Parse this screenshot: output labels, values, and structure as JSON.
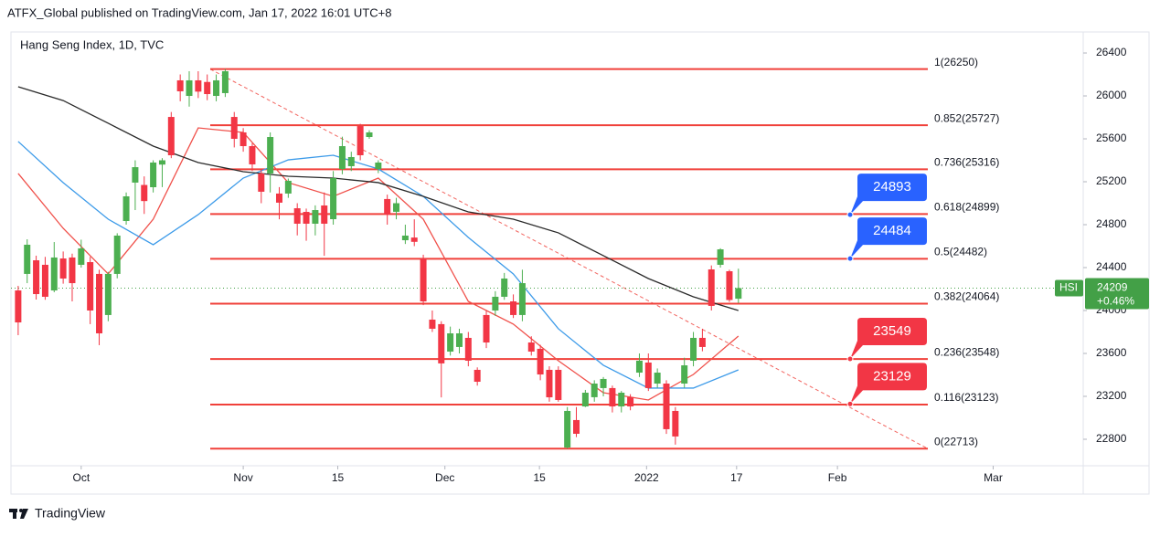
{
  "header": "ATFX_Global published on TradingView.com, Jan 17, 2022 16:01 UTC+8",
  "footer": "TradingView",
  "chart_data": {
    "type": "candlestick",
    "title": "Hang Seng Index, 1D, TVC",
    "x": [
      0,
      1,
      2,
      3,
      4,
      5,
      6,
      7,
      8,
      9,
      10,
      11,
      12,
      13,
      14,
      15,
      16,
      17,
      18,
      19,
      20,
      21,
      22,
      23,
      24,
      25,
      26,
      27,
      28,
      29,
      30,
      31,
      32,
      33,
      34,
      35,
      36,
      37,
      38,
      39,
      40,
      41,
      42,
      43,
      44,
      45,
      46,
      47,
      48,
      49,
      50,
      51,
      52,
      53,
      54,
      55,
      56,
      57,
      58,
      59,
      60,
      61,
      62,
      63,
      64,
      65,
      66,
      67,
      68,
      69,
      70,
      71,
      72,
      73,
      74,
      75,
      76,
      77,
      78,
      79,
      80
    ],
    "open": [
      24187,
      24341,
      24468,
      24426,
      24187,
      24485,
      24494,
      24426,
      24451,
      24341,
      23958,
      24341,
      24834,
      25192,
      25170,
      25149,
      25360,
      25804,
      26145,
      26000,
      26145,
      26130,
      26000,
      26026,
      25804,
      25660,
      25532,
      25277,
      25277,
      25090,
      25090,
      24953,
      24919,
      24809,
      24979,
      24851,
      25319,
      25345,
      25719,
      25617,
      25319,
      25039,
      24920,
      24655,
      24680,
      24485,
      23915,
      23873,
      23617,
      23660,
      23745,
      23447,
      23958,
      24000,
      24128,
      24085,
      23958,
      23702,
      23643,
      23447,
      23447,
      22723,
      22979,
      23106,
      23192,
      23277,
      23277,
      23106,
      23192,
      23421,
      23515,
      23319,
      23319,
      23064,
      23319,
      23532,
      23745,
      24383,
      24426,
      24366,
      24110
    ],
    "high": [
      24230,
      24664,
      24511,
      24500,
      24638,
      24550,
      24530,
      24660,
      24500,
      24380,
      24360,
      24720,
      25100,
      25400,
      25250,
      25400,
      25420,
      25850,
      26200,
      26230,
      26230,
      26200,
      26200,
      26250,
      25850,
      25700,
      25560,
      25320,
      25660,
      25150,
      25230,
      25000,
      24950,
      24980,
      25100,
      25300,
      25620,
      25480,
      25740,
      25680,
      25400,
      25080,
      25050,
      24800,
      24850,
      24520,
      24000,
      23900,
      23850,
      23830,
      23800,
      23470,
      24000,
      24180,
      24350,
      24150,
      24380,
      23760,
      23680,
      23480,
      23480,
      23100,
      23100,
      23260,
      23350,
      23380,
      23300,
      23250,
      23220,
      23600,
      23600,
      23460,
      23350,
      23100,
      23560,
      23800,
      23830,
      24420,
      24580,
      24380,
      24390
    ],
    "low": [
      23770,
      24255,
      24102,
      24100,
      24170,
      24250,
      24085,
      24400,
      23873,
      23677,
      23900,
      24300,
      24800,
      24936,
      24900,
      25100,
      25150,
      25420,
      25950,
      25900,
      25980,
      25960,
      25950,
      25990,
      25520,
      25480,
      25300,
      25000,
      25100,
      24850,
      25050,
      24700,
      24650,
      24700,
      24510,
      24800,
      25270,
      25300,
      25400,
      25600,
      25280,
      24800,
      24850,
      24620,
      24600,
      24050,
      23800,
      23190,
      23580,
      23600,
      23480,
      23300,
      23650,
      23950,
      24100,
      23930,
      23900,
      23580,
      23350,
      23150,
      23150,
      22713,
      22820,
      23100,
      23150,
      23200,
      23050,
      23050,
      23070,
      23380,
      23250,
      23280,
      22850,
      22750,
      23280,
      23480,
      23620,
      24000,
      24400,
      24080,
      24070
    ],
    "close": [
      23889,
      24613,
      24153,
      24128,
      24494,
      24298,
      24255,
      24579,
      24000,
      23787,
      24341,
      24698,
      25064,
      25336,
      25020,
      25379,
      25400,
      25447,
      26043,
      26145,
      26040,
      26017,
      26145,
      26230,
      25600,
      25532,
      25362,
      25107,
      25617,
      25005,
      25209,
      24809,
      24809,
      24936,
      24809,
      25234,
      25532,
      25430,
      25447,
      25660,
      25379,
      24894,
      25000,
      24698,
      24640,
      24085,
      23830,
      23507,
      23787,
      23787,
      23532,
      23336,
      23702,
      24128,
      24298,
      23958,
      24255,
      23617,
      23404,
      23191,
      23166,
      23064,
      22851,
      23234,
      23319,
      23362,
      23106,
      23234,
      23106,
      23532,
      23277,
      23421,
      22894,
      22826,
      23489,
      23745,
      23660,
      24043,
      24570,
      24098,
      24209
    ],
    "up_color": "#4caf50",
    "down_color": "#f23645",
    "moving_averages": [
      {
        "color": "#f0504a",
        "x": [
          0,
          5,
          10,
          15,
          20,
          25,
          30,
          35,
          40,
          45,
          50,
          55,
          60,
          65,
          70,
          75,
          80
        ],
        "values": [
          25277,
          24766,
          24341,
          24851,
          25702,
          25660,
          25192,
          25064,
          25234,
          24851,
          24085,
          23873,
          23532,
          23234,
          23166,
          23404,
          23762
        ]
      },
      {
        "color": "#3d9be9",
        "x": [
          0,
          5,
          10,
          15,
          20,
          25,
          30,
          35,
          40,
          45,
          50,
          55,
          60,
          65,
          70,
          75,
          80
        ],
        "values": [
          25575,
          25192,
          24851,
          24613,
          24894,
          25234,
          25404,
          25447,
          25319,
          25064,
          24681,
          24341,
          23830,
          23490,
          23277,
          23277,
          23447
        ]
      },
      {
        "color": "#2a2a2a",
        "x": [
          0,
          5,
          10,
          15,
          20,
          25,
          30,
          35,
          40,
          45,
          50,
          55,
          60,
          65,
          70,
          75,
          80
        ],
        "values": [
          26085,
          25957,
          25745,
          25532,
          25379,
          25294,
          25251,
          25234,
          25192,
          25064,
          24919,
          24851,
          24724,
          24511,
          24298,
          24128,
          24000
        ]
      }
    ],
    "fib_color": "#f0403a",
    "fib_levels": [
      {
        "value": 26250,
        "label": "1(26250)"
      },
      {
        "value": 25727,
        "label": "0.852(25727)"
      },
      {
        "value": 25316,
        "label": "0.736(25316)"
      },
      {
        "value": 24899,
        "label": "0.618(24899)"
      },
      {
        "value": 24482,
        "label": "0.5(24482)"
      },
      {
        "value": 24064,
        "label": "0.382(24064)"
      },
      {
        "value": 23548,
        "label": "0.236(23548)"
      },
      {
        "value": 23123,
        "label": "0.116(23123)"
      },
      {
        "value": 22713,
        "label": "0(22713)"
      }
    ],
    "callouts": [
      {
        "value": 24893,
        "color": "#2962ff"
      },
      {
        "value": 24484,
        "color": "#2962ff"
      },
      {
        "value": 23549,
        "color": "#f23645"
      },
      {
        "value": 23129,
        "color": "#f23645"
      }
    ],
    "last_price": {
      "symbol": "HSI",
      "value": 24209,
      "change": "+0.46%",
      "color": "#43a047"
    },
    "xlim": [
      -0.8,
      118.3
    ],
    "xticks": [
      {
        "value": 7,
        "label": "Oct"
      },
      {
        "value": 25,
        "label": "Nov"
      },
      {
        "value": 35.5,
        "label": "15"
      },
      {
        "value": 47.4,
        "label": "Dec"
      },
      {
        "value": 57.9,
        "label": "15"
      },
      {
        "value": 69.8,
        "label": "2022"
      },
      {
        "value": 79.8,
        "label": "17"
      },
      {
        "value": 91,
        "label": "Feb"
      },
      {
        "value": 108.3,
        "label": "Mar"
      }
    ],
    "ylim": [
      22553,
      26596
    ],
    "yticks": [
      22800,
      23200,
      23600,
      24000,
      24400,
      24800,
      25200,
      25600,
      26000,
      26400
    ]
  }
}
